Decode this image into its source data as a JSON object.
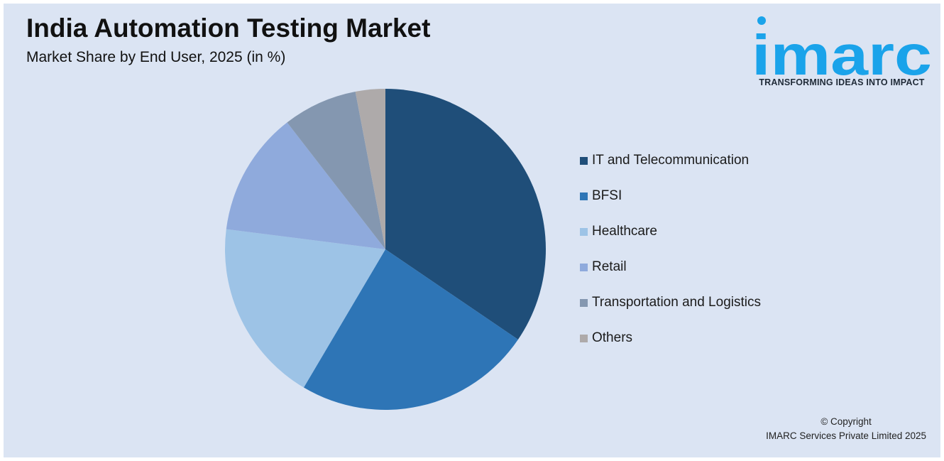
{
  "header": {
    "title": "India Automation Testing Market",
    "subtitle": "Market Share by End User, 2025 (in %)"
  },
  "logo": {
    "wordmark": "imarc",
    "tagline": "TRANSFORMING IDEAS INTO IMPACT",
    "color": "#1aa3ea"
  },
  "chart_data": {
    "type": "pie",
    "title": "India Automation Testing Market",
    "subtitle": "Market Share by End User, 2025 (in %)",
    "legend_position": "right",
    "categories": [
      "IT and Telecommunication",
      "BFSI",
      "Healthcare",
      "Retail",
      "Transportation and Logistics",
      "Others"
    ],
    "values": [
      34.5,
      24,
      18.5,
      12.5,
      7.5,
      3
    ],
    "colors": [
      "#1f4e79",
      "#2e75b6",
      "#9dc3e6",
      "#8faadc",
      "#8497b0",
      "#aeaaaa"
    ]
  },
  "footer": {
    "copyright_line1": "© Copyright",
    "copyright_line2": "IMARC Services Private Limited 2025"
  }
}
